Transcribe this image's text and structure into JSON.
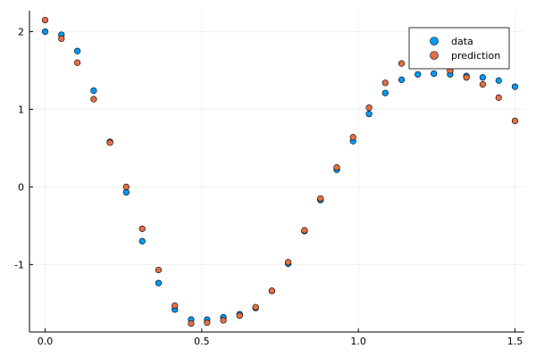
{
  "chart_data": {
    "type": "scatter",
    "title": "",
    "xlabel": "",
    "ylabel": "",
    "xlim": [
      -0.05,
      1.53
    ],
    "ylim": [
      -1.87,
      2.27
    ],
    "xticks": [
      0.0,
      0.5,
      1.0,
      1.5
    ],
    "xtick_labels": [
      "0.0",
      "0.5",
      "1.0",
      "1.5"
    ],
    "yticks": [
      -1,
      0,
      1,
      2
    ],
    "ytick_labels": [
      "-1",
      "0",
      "1",
      "2"
    ],
    "grid": true,
    "legend_position": "top-right",
    "x": [
      0.0,
      0.052,
      0.103,
      0.155,
      0.207,
      0.259,
      0.31,
      0.362,
      0.414,
      0.466,
      0.517,
      0.569,
      0.621,
      0.672,
      0.724,
      0.776,
      0.828,
      0.879,
      0.931,
      0.983,
      1.034,
      1.086,
      1.138,
      1.19,
      1.241,
      1.293,
      1.345,
      1.397,
      1.448,
      1.5
    ],
    "series": [
      {
        "name": "data",
        "color": "#009AF9",
        "values": [
          2.0,
          1.96,
          1.75,
          1.24,
          0.58,
          -0.07,
          -0.7,
          -1.24,
          -1.58,
          -1.71,
          -1.71,
          -1.68,
          -1.64,
          -1.56,
          -1.34,
          -0.99,
          -0.57,
          -0.17,
          0.22,
          0.59,
          0.94,
          1.21,
          1.38,
          1.45,
          1.46,
          1.45,
          1.43,
          1.41,
          1.37,
          1.29
        ]
      },
      {
        "name": "prediction",
        "color": "#E26F46",
        "values": [
          2.15,
          1.91,
          1.6,
          1.13,
          0.57,
          0.0,
          -0.54,
          -1.07,
          -1.53,
          -1.76,
          -1.75,
          -1.72,
          -1.66,
          -1.55,
          -1.34,
          -0.97,
          -0.56,
          -0.15,
          0.25,
          0.64,
          1.02,
          1.34,
          1.59,
          1.64,
          1.63,
          1.5,
          1.41,
          1.32,
          1.15,
          0.85
        ]
      }
    ]
  }
}
